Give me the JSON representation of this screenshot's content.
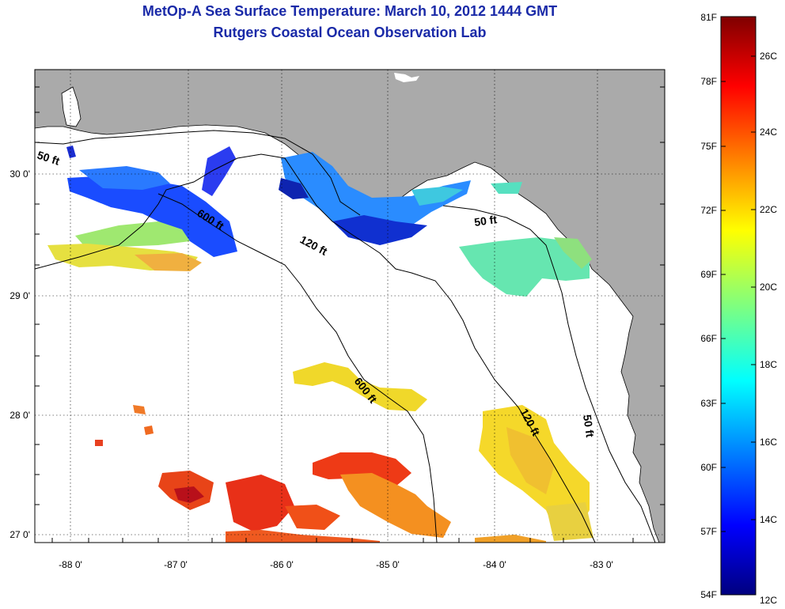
{
  "title": {
    "line1": "MetOp-A Sea Surface Temperature:  March 10, 2012 1444 GMT",
    "line2": "Rutgers Coastal Ocean Observation Lab"
  },
  "map": {
    "lon_labels": [
      "-88 0'",
      "-87 0'",
      "-86 0'",
      "-85 0'",
      "-84 0'",
      "-83 0'"
    ],
    "lat_labels": [
      "30 0'",
      "29 0'",
      "28 0'",
      "27 0'"
    ],
    "contour_labels": [
      "50 ft",
      "600 ft",
      "120 ft",
      "50 ft",
      "600 ft",
      "120 ft",
      "50 ft"
    ],
    "colors": {
      "land": "#aaaaaa",
      "ocean": "#ffffff",
      "title": "#1a2aa8"
    }
  },
  "colorbar": {
    "fahrenheit": [
      "81F",
      "78F",
      "75F",
      "72F",
      "69F",
      "66F",
      "63F",
      "60F",
      "57F",
      "54F"
    ],
    "celsius": [
      "26C",
      "24C",
      "22C",
      "20C",
      "18C",
      "16C",
      "14C",
      "12C"
    ],
    "range_f": [
      54,
      81
    ],
    "range_c": [
      12,
      27.2
    ],
    "colormap": [
      "#00007f",
      "#0000ff",
      "#007fff",
      "#00ffff",
      "#7fff7f",
      "#ffff00",
      "#ff7f00",
      "#ff0000",
      "#7f0000"
    ]
  }
}
